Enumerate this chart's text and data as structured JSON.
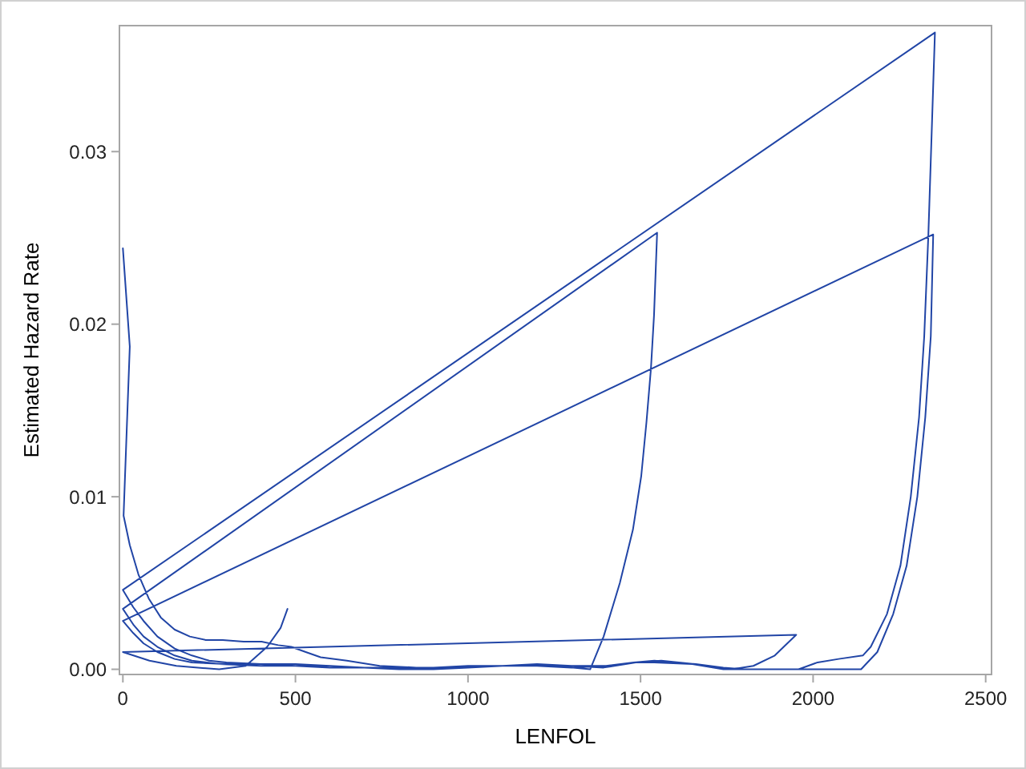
{
  "chart_data": {
    "type": "line",
    "xlabel": "LENFOL",
    "ylabel": "Estimated Hazard Rate",
    "x": [
      0,
      20,
      2,
      20,
      45,
      75,
      110,
      150,
      194,
      240,
      289,
      350,
      402,
      450,
      488,
      530,
      573,
      649,
      744,
      850,
      950,
      1050,
      1150,
      1250,
      1354,
      1393,
      1440,
      1478,
      1502,
      1517,
      1530,
      1539,
      1548,
      0,
      30,
      60,
      100,
      150,
      200,
      280,
      400,
      500,
      600,
      700,
      800,
      900,
      1000,
      1100,
      1200,
      1300,
      1400,
      1480,
      1540,
      1600,
      1660,
      1740,
      1800,
      1958,
      2013,
      2074,
      2144,
      2167,
      2214,
      2253,
      2283,
      2307,
      2322,
      2334,
      2353,
      0,
      30,
      60,
      100,
      150,
      200,
      250,
      300,
      400,
      500,
      600,
      700,
      800,
      900,
      1000,
      1100,
      1200,
      1300,
      1400,
      1480,
      1540,
      1650,
      1740,
      1800,
      2139,
      2186,
      2232,
      2271,
      2302,
      2325,
      2341,
      2348,
      0,
      30,
      60,
      100,
      150,
      200,
      300,
      400,
      500,
      600,
      700,
      800,
      900,
      1000,
      1100,
      1200,
      1300,
      1393,
      1486,
      1560,
      1656,
      1720,
      1765,
      1827,
      1889,
      1951,
      0,
      77,
      155,
      279,
      356,
      418,
      457,
      477
    ],
    "values": [
      0.0244,
      0.0187,
      0.0089,
      0.0072,
      0.0055,
      0.0041,
      0.003,
      0.0023,
      0.0019,
      0.0017,
      0.0017,
      0.0016,
      0.0016,
      0.0014,
      0.0013,
      0.001,
      0.0007,
      0.0005,
      0.0002,
      0.0001,
      0.0001,
      0.0002,
      0.0002,
      0.0002,
      0,
      0.0019,
      0.005,
      0.0081,
      0.0112,
      0.0143,
      0.0174,
      0.0205,
      0.0253,
      0.0035,
      0.0026,
      0.0019,
      0.0013,
      0.0008,
      0.0005,
      0.0003,
      0.0002,
      0.0002,
      0.0002,
      0.0001,
      0.0001,
      0.0001,
      0.0002,
      0.0002,
      0.0003,
      0.0002,
      0.0002,
      0.0004,
      0.0005,
      0.0004,
      0.0003,
      0.0001,
      0,
      0,
      0.0004,
      0.0006,
      0.0008,
      0.0013,
      0.0032,
      0.006,
      0.01,
      0.0146,
      0.0193,
      0.0252,
      0.0369,
      0.0046,
      0.0036,
      0.0028,
      0.0019,
      0.0012,
      0.0008,
      0.0005,
      0.0004,
      0.0003,
      0.0003,
      0.0002,
      0.0001,
      0,
      0,
      0.0001,
      0.0002,
      0.0002,
      0.0001,
      0.0002,
      0.0004,
      0.0004,
      0.0003,
      0,
      0,
      0,
      0.001,
      0.0032,
      0.006,
      0.01,
      0.0146,
      0.0193,
      0.0252,
      0.0028,
      0.0021,
      0.0015,
      0.001,
      0.0006,
      0.0004,
      0.0003,
      0.0003,
      0.0002,
      0.0001,
      0.0001,
      0,
      0.0001,
      0.0001,
      0.0002,
      0.0002,
      0.0002,
      0.0001,
      0.0004,
      0.0005,
      0.0003,
      0.0001,
      0,
      0.0002,
      0.0008,
      0.002,
      0.001,
      0.0005,
      0.0002,
      0,
      0.0002,
      0.0013,
      0.0024,
      0.0035
    ],
    "color": "#2145a6",
    "xlim": [
      -10,
      2517
    ],
    "ylim": [
      -0.0003,
      0.0373
    ],
    "xticks": [
      0,
      500,
      1000,
      1500,
      2000,
      2500
    ],
    "yticks": [
      {
        "value": 0,
        "label": "0.00"
      },
      0.01,
      0.02,
      0.03
    ]
  }
}
